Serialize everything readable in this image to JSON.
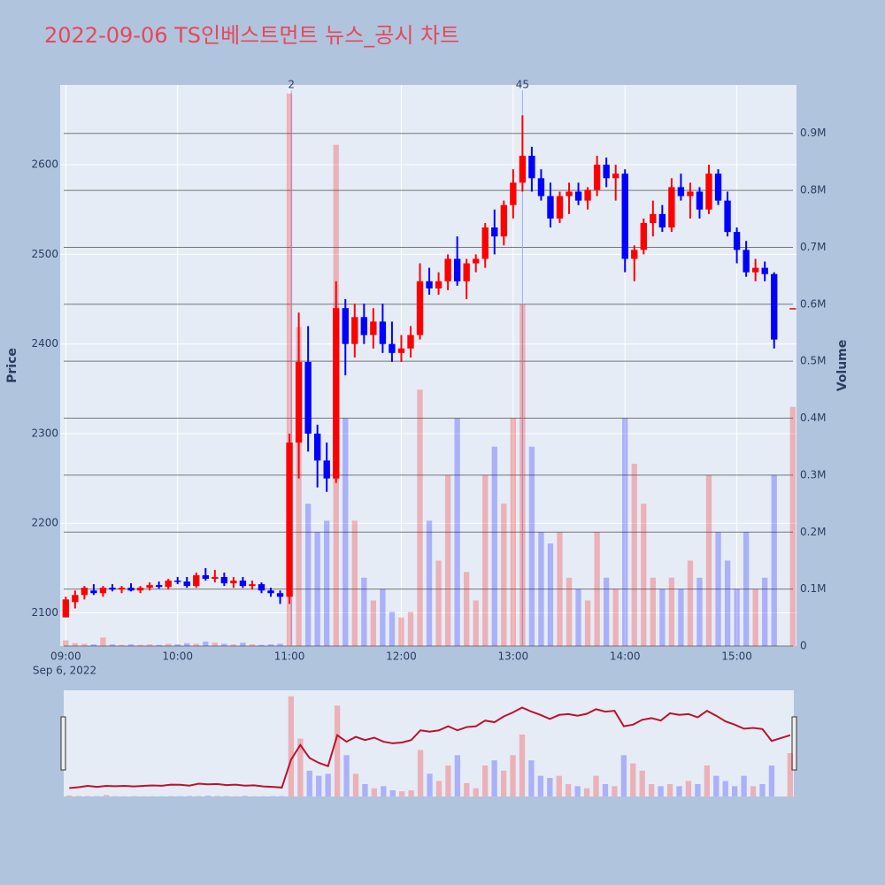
{
  "chart_data": {
    "type": "candlestick",
    "title": "2022-09-06 TS인베스트먼트 뉴스_공시 차트",
    "y_label": "Price",
    "y2_label": "Volume",
    "xaxis_date_label": "Sep 6, 2022",
    "increasing_color": "#ff0000",
    "decreasing_color": "#0000ff",
    "grid": true,
    "xlim": [
      "08:57",
      "15:32"
    ],
    "xticks": [
      "09:00",
      "10:00",
      "11:00",
      "12:00",
      "13:00",
      "14:00",
      "15:00"
    ],
    "ylim": [
      2063,
      2689
    ],
    "yticks": [
      2100,
      2200,
      2300,
      2400,
      2500,
      2600
    ],
    "y2lim": [
      0,
      985000
    ],
    "y2ticks": [
      0,
      {
        "value": 100000,
        "label": "0.1M"
      },
      {
        "value": 200000,
        "label": "0.2M"
      },
      {
        "value": 300000,
        "label": "0.3M"
      },
      {
        "value": 400000,
        "label": "0.4M"
      },
      {
        "value": 500000,
        "label": "0.5M"
      },
      {
        "value": 600000,
        "label": "0.6M"
      },
      {
        "value": 700000,
        "label": "0.7M"
      },
      {
        "value": 800000,
        "label": "0.8M"
      },
      {
        "value": 900000,
        "label": "0.9M"
      }
    ],
    "annotations": [
      {
        "x": "11:01",
        "text": "2"
      },
      {
        "x": "13:05",
        "text": "45"
      }
    ],
    "x": [
      "09:00",
      "09:05",
      "09:10",
      "09:15",
      "09:20",
      "09:25",
      "09:30",
      "09:35",
      "09:40",
      "09:45",
      "09:50",
      "09:55",
      "10:00",
      "10:05",
      "10:10",
      "10:15",
      "10:20",
      "10:25",
      "10:30",
      "10:35",
      "10:40",
      "10:45",
      "10:50",
      "10:55",
      "11:00",
      "11:05",
      "11:10",
      "11:15",
      "11:20",
      "11:25",
      "11:30",
      "11:35",
      "11:40",
      "11:45",
      "11:50",
      "11:55",
      "12:00",
      "12:05",
      "12:10",
      "12:15",
      "12:20",
      "12:25",
      "12:30",
      "12:35",
      "12:40",
      "12:45",
      "12:50",
      "12:55",
      "13:00",
      "13:05",
      "13:10",
      "13:15",
      "13:20",
      "13:25",
      "13:30",
      "13:35",
      "13:40",
      "13:45",
      "13:50",
      "13:55",
      "14:00",
      "14:05",
      "14:10",
      "14:15",
      "14:20",
      "14:25",
      "14:30",
      "14:35",
      "14:40",
      "14:45",
      "14:50",
      "14:55",
      "15:00",
      "15:05",
      "15:10",
      "15:15",
      "15:20",
      "15:30"
    ],
    "open": [
      2095,
      2112,
      2120,
      2125,
      2122,
      2128,
      2126,
      2128,
      2125,
      2128,
      2131,
      2129,
      2136,
      2135,
      2130,
      2142,
      2138,
      2140,
      2133,
      2136,
      2130,
      2132,
      2125,
      2122,
      2118,
      2290,
      2380,
      2300,
      2270,
      2250,
      2440,
      2400,
      2430,
      2410,
      2425,
      2400,
      2390,
      2395,
      2410,
      2470,
      2462,
      2470,
      2495,
      2470,
      2490,
      2495,
      2530,
      2520,
      2555,
      2580,
      2610,
      2585,
      2565,
      2540,
      2565,
      2570,
      2560,
      2572,
      2600,
      2585,
      2590,
      2495,
      2505,
      2535,
      2545,
      2530,
      2575,
      2565,
      2570,
      2550,
      2590,
      2560,
      2525,
      2505,
      2480,
      2485,
      2478,
      2440
    ],
    "high": [
      2118,
      2125,
      2130,
      2132,
      2130,
      2132,
      2130,
      2133,
      2130,
      2134,
      2135,
      2138,
      2140,
      2140,
      2145,
      2150,
      2148,
      2145,
      2140,
      2140,
      2136,
      2134,
      2128,
      2125,
      2300,
      2435,
      2420,
      2310,
      2290,
      2470,
      2450,
      2445,
      2445,
      2440,
      2445,
      2425,
      2410,
      2420,
      2490,
      2485,
      2480,
      2500,
      2520,
      2495,
      2500,
      2535,
      2550,
      2560,
      2595,
      2655,
      2620,
      2595,
      2580,
      2570,
      2580,
      2580,
      2575,
      2610,
      2608,
      2600,
      2595,
      2510,
      2540,
      2560,
      2555,
      2585,
      2590,
      2580,
      2575,
      2600,
      2595,
      2570,
      2530,
      2515,
      2495,
      2492,
      2480,
      2440
    ],
    "low": [
      2095,
      2105,
      2115,
      2120,
      2118,
      2124,
      2122,
      2124,
      2122,
      2125,
      2127,
      2126,
      2132,
      2128,
      2128,
      2136,
      2134,
      2130,
      2128,
      2128,
      2126,
      2122,
      2118,
      2110,
      2110,
      2250,
      2280,
      2240,
      2235,
      2245,
      2365,
      2385,
      2400,
      2395,
      2390,
      2380,
      2380,
      2385,
      2405,
      2455,
      2455,
      2460,
      2465,
      2450,
      2480,
      2485,
      2500,
      2510,
      2540,
      2570,
      2570,
      2560,
      2530,
      2535,
      2545,
      2555,
      2550,
      2565,
      2575,
      2560,
      2480,
      2470,
      2500,
      2520,
      2525,
      2525,
      2560,
      2540,
      2540,
      2545,
      2555,
      2520,
      2490,
      2475,
      2470,
      2470,
      2395,
      2440
    ],
    "close": [
      2115,
      2120,
      2128,
      2122,
      2128,
      2126,
      2128,
      2125,
      2128,
      2131,
      2129,
      2136,
      2135,
      2130,
      2142,
      2138,
      2140,
      2133,
      2136,
      2130,
      2132,
      2125,
      2122,
      2118,
      2290,
      2380,
      2300,
      2270,
      2250,
      2440,
      2400,
      2430,
      2410,
      2425,
      2400,
      2390,
      2395,
      2410,
      2470,
      2462,
      2470,
      2495,
      2470,
      2490,
      2495,
      2530,
      2520,
      2555,
      2580,
      2610,
      2585,
      2565,
      2540,
      2565,
      2570,
      2560,
      2572,
      2600,
      2585,
      2590,
      2495,
      2505,
      2535,
      2545,
      2530,
      2575,
      2565,
      2570,
      2550,
      2590,
      2560,
      2525,
      2505,
      2480,
      2485,
      2478,
      2405,
      2440
    ],
    "volume": [
      10000,
      5000,
      4000,
      3000,
      15000,
      3000,
      2000,
      3000,
      2000,
      3000,
      2000,
      4000,
      3000,
      5000,
      4000,
      8000,
      6000,
      4000,
      3000,
      6000,
      3000,
      2000,
      3000,
      4000,
      970000,
      560000,
      250000,
      200000,
      220000,
      880000,
      400000,
      220000,
      120000,
      80000,
      100000,
      60000,
      50000,
      60000,
      450000,
      220000,
      150000,
      300000,
      400000,
      130000,
      80000,
      300000,
      350000,
      250000,
      400000,
      600000,
      350000,
      200000,
      180000,
      200000,
      120000,
      100000,
      80000,
      200000,
      120000,
      100000,
      400000,
      320000,
      250000,
      120000,
      100000,
      120000,
      100000,
      150000,
      120000,
      300000,
      200000,
      150000,
      100000,
      200000,
      100000,
      120000,
      300000,
      420000
    ]
  }
}
